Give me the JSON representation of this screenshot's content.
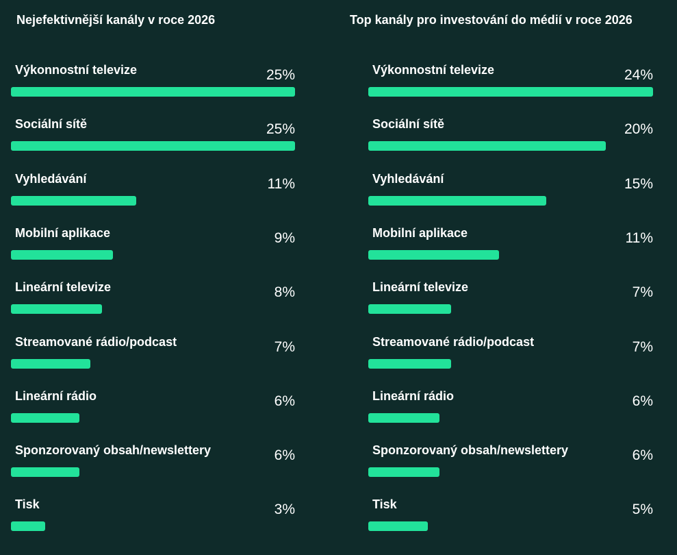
{
  "chart_data": [
    {
      "type": "bar",
      "orientation": "horizontal",
      "title": "Nejefektivnější kanály v roce 2026",
      "categories": [
        "Výkonnostní televize",
        "Sociální sítě",
        "Vyhledávání",
        "Mobilní aplikace",
        "Lineární televize",
        "Streamované rádio/podcast",
        "Lineární rádio",
        "Sponzorovaný obsah/newslettery",
        "Tisk"
      ],
      "values": [
        25,
        25,
        11,
        9,
        8,
        7,
        6,
        6,
        3
      ],
      "value_labels": [
        "25%",
        "25%",
        "11%",
        "9%",
        "8%",
        "7%",
        "6%",
        "6%",
        "3%"
      ],
      "xlim": [
        0,
        25
      ],
      "xlabel": "",
      "ylabel": ""
    },
    {
      "type": "bar",
      "orientation": "horizontal",
      "title": "Top kanály pro investování do médií v roce 2026",
      "categories": [
        "Výkonnostní televize",
        "Sociální sítě",
        "Vyhledávání",
        "Mobilní aplikace",
        "Lineární televize",
        "Streamované rádio/podcast",
        "Lineární rádio",
        "Sponzorovaný obsah/newslettery",
        "Tisk"
      ],
      "values": [
        24,
        20,
        15,
        11,
        7,
        7,
        6,
        6,
        5
      ],
      "value_labels": [
        "24%",
        "20%",
        "15%",
        "11%",
        "7%",
        "7%",
        "6%",
        "6%",
        "5%"
      ],
      "xlim": [
        0,
        24
      ],
      "xlabel": "",
      "ylabel": ""
    }
  ],
  "colors": {
    "background": "#0f2b2a",
    "bar": "#22e29a",
    "text": "#ffffff"
  }
}
